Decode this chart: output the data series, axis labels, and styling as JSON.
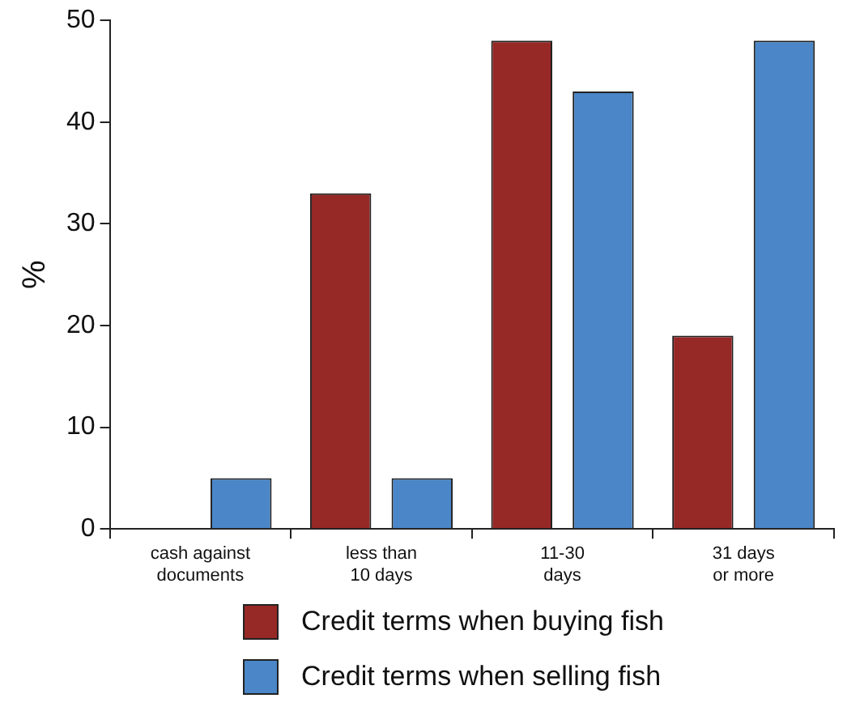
{
  "chart_data": {
    "type": "bar",
    "ylabel": "%",
    "categories": [
      "cash against\ndocuments",
      "less than\n10 days",
      "11-30\ndays",
      "31 days\nor more"
    ],
    "series": [
      {
        "name": "Credit terms when buying fish",
        "color": "#962826",
        "values": [
          0,
          33,
          48,
          19
        ]
      },
      {
        "name": "Credit terms when selling fish",
        "color": "#4a86c8",
        "values": [
          5,
          5,
          43,
          48
        ]
      }
    ],
    "ylim": [
      0,
      50
    ],
    "yticks": [
      0,
      10,
      20,
      30,
      40,
      50
    ],
    "grid": false,
    "legend": "bottom"
  }
}
